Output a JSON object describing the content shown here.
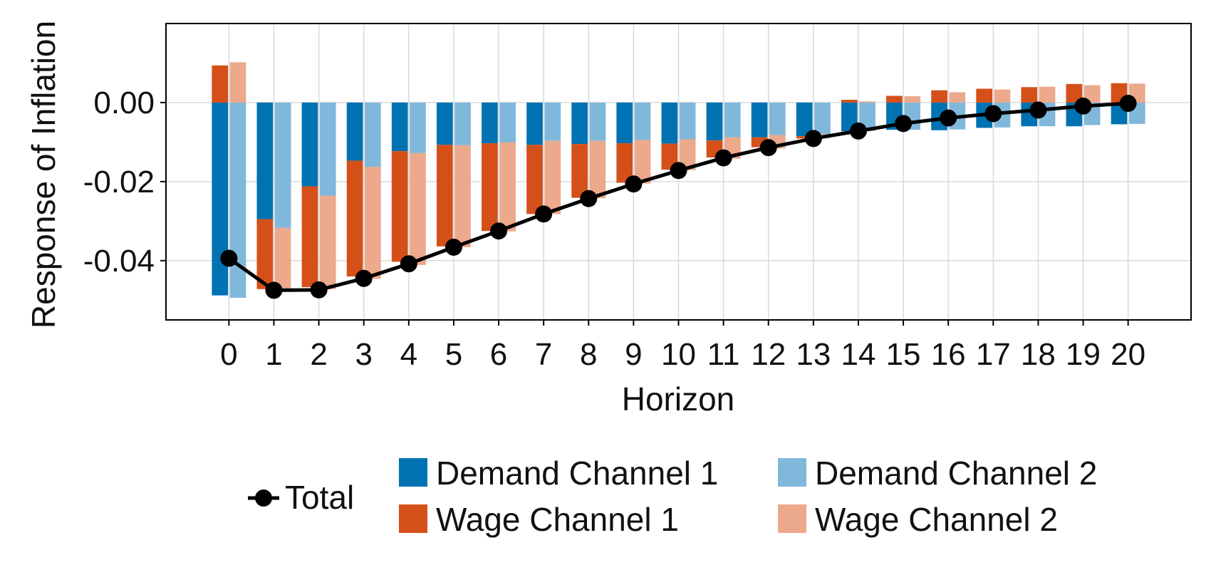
{
  "chart_data": {
    "type": "bar",
    "xlabel": "Horizon",
    "ylabel": "Response of Inflation",
    "x_ticks": [
      "0",
      "1",
      "2",
      "3",
      "4",
      "5",
      "6",
      "7",
      "8",
      "9",
      "10",
      "11",
      "12",
      "13",
      "14",
      "15",
      "16",
      "17",
      "18",
      "19",
      "20"
    ],
    "y_ticks": [
      "0.00",
      "-0.02",
      "-0.04"
    ],
    "y_tick_values": [
      0.0,
      -0.02,
      -0.04
    ],
    "ylim": [
      -0.055,
      0.02
    ],
    "xlim": [
      -1.4,
      21.4
    ],
    "grid": true,
    "legend_position": "bottom",
    "bar_groups": [
      {
        "series": [
          {
            "name": "Demand Channel 1",
            "color": "#0072B2",
            "values": [
              -0.0488,
              -0.0295,
              -0.0212,
              -0.0147,
              -0.0123,
              -0.0107,
              -0.0103,
              -0.0107,
              -0.0105,
              -0.0103,
              -0.0104,
              -0.0096,
              -0.0088,
              -0.0085,
              -0.0073,
              -0.0069,
              -0.007,
              -0.0064,
              -0.006,
              -0.006,
              -0.0055
            ]
          },
          {
            "name": "Wage Channel 1",
            "color": "#D55019",
            "values": [
              0.0094,
              -0.0177,
              -0.0255,
              -0.0293,
              -0.028,
              -0.0257,
              -0.0222,
              -0.0175,
              -0.0136,
              -0.01,
              -0.0066,
              -0.0043,
              -0.0025,
              -0.0006,
              0.0007,
              0.0017,
              0.0031,
              0.0035,
              0.0039,
              0.0047,
              0.0049
            ]
          }
        ]
      },
      {
        "series": [
          {
            "name": "Demand Channel 2",
            "color": "#80B8DB",
            "values": [
              -0.0494,
              -0.0317,
              -0.0236,
              -0.0163,
              -0.0128,
              -0.0108,
              -0.0101,
              -0.0097,
              -0.0097,
              -0.0095,
              -0.0093,
              -0.0088,
              -0.0082,
              -0.008,
              -0.0072,
              -0.0069,
              -0.0068,
              -0.0063,
              -0.006,
              -0.0057,
              -0.0054
            ]
          },
          {
            "name": "Wage Channel 2",
            "color": "#ECA98C",
            "values": [
              0.0102,
              -0.0157,
              -0.0236,
              -0.0283,
              -0.0283,
              -0.0258,
              -0.0225,
              -0.0185,
              -0.0145,
              -0.011,
              -0.0078,
              -0.0054,
              -0.0034,
              -0.001,
              0.0003,
              0.0016,
              0.0026,
              0.0033,
              0.004,
              0.0044,
              0.0048
            ]
          }
        ]
      }
    ],
    "total": {
      "name": "Total",
      "color": "#000000",
      "values": [
        -0.0394,
        -0.0475,
        -0.0474,
        -0.0445,
        -0.0408,
        -0.0366,
        -0.0325,
        -0.0282,
        -0.0243,
        -0.0206,
        -0.0172,
        -0.014,
        -0.0114,
        -0.0091,
        -0.0072,
        -0.0053,
        -0.0039,
        -0.0028,
        -0.0019,
        -0.0009,
        -0.0002
      ]
    }
  }
}
